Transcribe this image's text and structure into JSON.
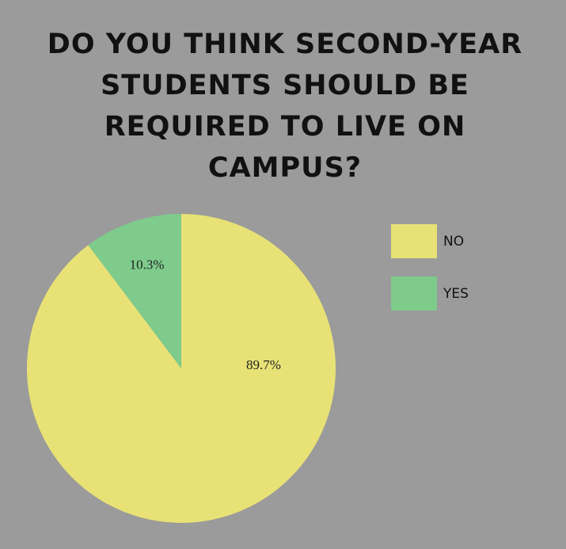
{
  "chart_data": {
    "type": "pie",
    "title": "DO YOU THINK SECOND-YEAR STUDENTS SHOULD BE REQUIRED TO LIVE ON CAMPUS?",
    "categories": [
      "NO",
      "YES"
    ],
    "values": [
      89.7,
      10.3
    ],
    "value_labels": [
      "89.7%",
      "10.3%"
    ],
    "colors": [
      "#e8e276",
      "#7ecb8c"
    ],
    "legend": "right"
  }
}
